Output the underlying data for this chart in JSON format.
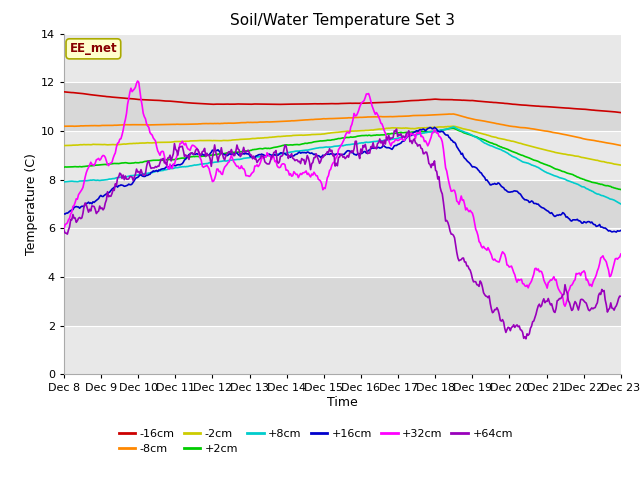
{
  "title": "Soil/Water Temperature Set 3",
  "xlabel": "Time",
  "ylabel": "Temperature (C)",
  "xlim": [
    0,
    15
  ],
  "ylim": [
    0,
    14
  ],
  "yticks": [
    0,
    2,
    4,
    6,
    8,
    10,
    12,
    14
  ],
  "xtick_labels": [
    "Dec 8",
    "Dec 9",
    "Dec 10",
    "Dec 11",
    "Dec 12",
    "Dec 13",
    "Dec 14",
    "Dec 15",
    "Dec 16",
    "Dec 17",
    "Dec 18",
    "Dec 19",
    "Dec 20",
    "Dec 21",
    "Dec 22",
    "Dec 23"
  ],
  "annotation_text": "EE_met",
  "annotation_box_color": "#ffffcc",
  "annotation_box_edge": "#aaaa00",
  "series_colors": {
    "-16cm": "#cc0000",
    "-8cm": "#ff8800",
    "-2cm": "#cccc00",
    "+2cm": "#00cc00",
    "+8cm": "#00cccc",
    "+16cm": "#0000cc",
    "+32cm": "#ff00ff",
    "+64cm": "#9900bb"
  },
  "background_color": "#ffffff",
  "plot_bg_even": "#e8e8e8",
  "plot_bg_odd": "#d8d8d8",
  "grid_color": "#ffffff",
  "title_fontsize": 11,
  "axis_fontsize": 9,
  "tick_fontsize": 8
}
